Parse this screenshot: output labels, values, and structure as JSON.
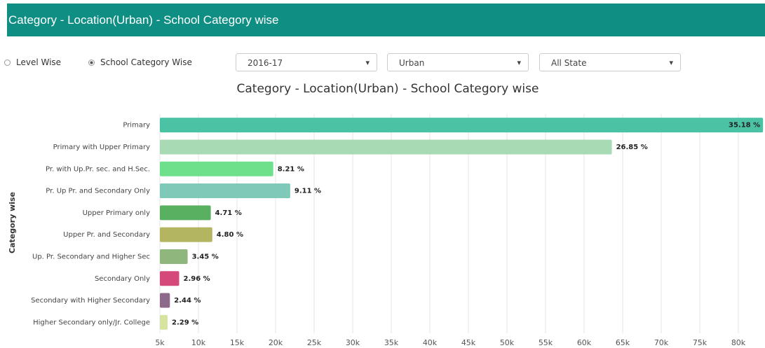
{
  "header": {
    "title": "Category - Location(Urban) - School Category wise"
  },
  "controls": {
    "radios": [
      "Level Wise",
      "School Category Wise"
    ],
    "selects": [
      "2016-17",
      "Urban",
      "All State"
    ]
  },
  "chart_data": {
    "type": "bar",
    "orientation": "horizontal",
    "title": "Category - Location(Urban) - School Category wise",
    "y_label": "Category wise",
    "categories": [
      "Primary",
      "Primary with Upper Primary",
      "Pr. with Up.Pr. sec. and H.Sec.",
      "Pr. Up Pr. and Secondary Only",
      "Upper Primary only",
      "Upper Pr. and Secondary",
      "Up. Pr. Secondary and Higher Sec",
      "Secondary Only",
      "Secondary with Higher Secondary",
      "Higher Secondary only/Jr. College"
    ],
    "values": [
      83200,
      63600,
      19700,
      21900,
      11600,
      11800,
      8600,
      7500,
      6300,
      6000
    ],
    "percent_labels": [
      "35.18 %",
      "26.85 %",
      "8.21 %",
      "9.11 %",
      "4.71 %",
      "4.80 %",
      "3.45 %",
      "2.96 %",
      "2.44 %",
      "2.29 %"
    ],
    "colors": [
      "#4cc2a5",
      "#a8dbb4",
      "#6ee08b",
      "#7fc9b9",
      "#58b060",
      "#b4b560",
      "#8fb77d",
      "#d5497a",
      "#8e6a8a",
      "#d6e4a0"
    ],
    "xlim": [
      5000,
      85000
    ],
    "xticks": [
      {
        "value": 5000,
        "label": "5k"
      },
      {
        "value": 10000,
        "label": "10k"
      },
      {
        "value": 15000,
        "label": "15k"
      },
      {
        "value": 20000,
        "label": "20k"
      },
      {
        "value": 25000,
        "label": "25k"
      },
      {
        "value": 30000,
        "label": "30k"
      },
      {
        "value": 35000,
        "label": "35k"
      },
      {
        "value": 40000,
        "label": "40k"
      },
      {
        "value": 45000,
        "label": "45k"
      },
      {
        "value": 50000,
        "label": "50k"
      },
      {
        "value": 55000,
        "label": "55k"
      },
      {
        "value": 60000,
        "label": "60k"
      },
      {
        "value": 65000,
        "label": "65k"
      },
      {
        "value": 70000,
        "label": "70k"
      },
      {
        "value": 75000,
        "label": "75k"
      },
      {
        "value": 80000,
        "label": "80k"
      }
    ],
    "grid": true
  }
}
